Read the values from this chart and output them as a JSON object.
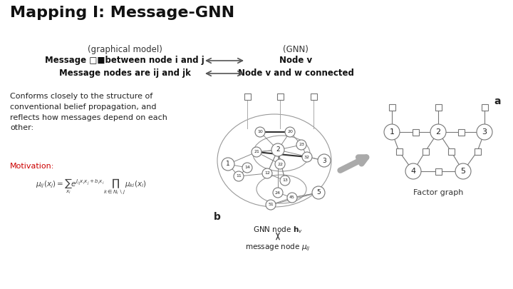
{
  "title": "Mapping I: Message-GNN",
  "title_fontsize": 16,
  "background_color": "#ffffff",
  "col1_header": "(graphical model)",
  "col2_header": "(GNN)",
  "row1_col1": "Message □■between node i and j",
  "row1_col2": "Node v",
  "row2_col1": "Message nodes are ij and jk",
  "row2_col2": "Node v and w connected",
  "body_text": "Conforms closely to the structure of\nconventional belief propagation, and\nreflects how messages depend on each\nother:",
  "motivation_label": "Motivation:",
  "formula": "$\\mu_{ij}(x_j) = \\sum_{x_i} e^{J_{ij} x_i x_j + b_i x_i} \\prod_{k \\in N_i \\setminus j} \\mu_{ki}(x_i)$",
  "graph_label_a": "a",
  "graph_label_b": "b",
  "gnn_node_label": "GNN node $\\mathbf{h}_v$",
  "message_node_label": "message node $\\mu_{ij}$",
  "factor_graph_label": "Factor graph",
  "node_color": "#ffffff",
  "node_edge_color": "#777777",
  "line_color": "#555555",
  "text_color": "#333333",
  "red_color": "#cc0000",
  "arrow_color": "#aaaaaa"
}
